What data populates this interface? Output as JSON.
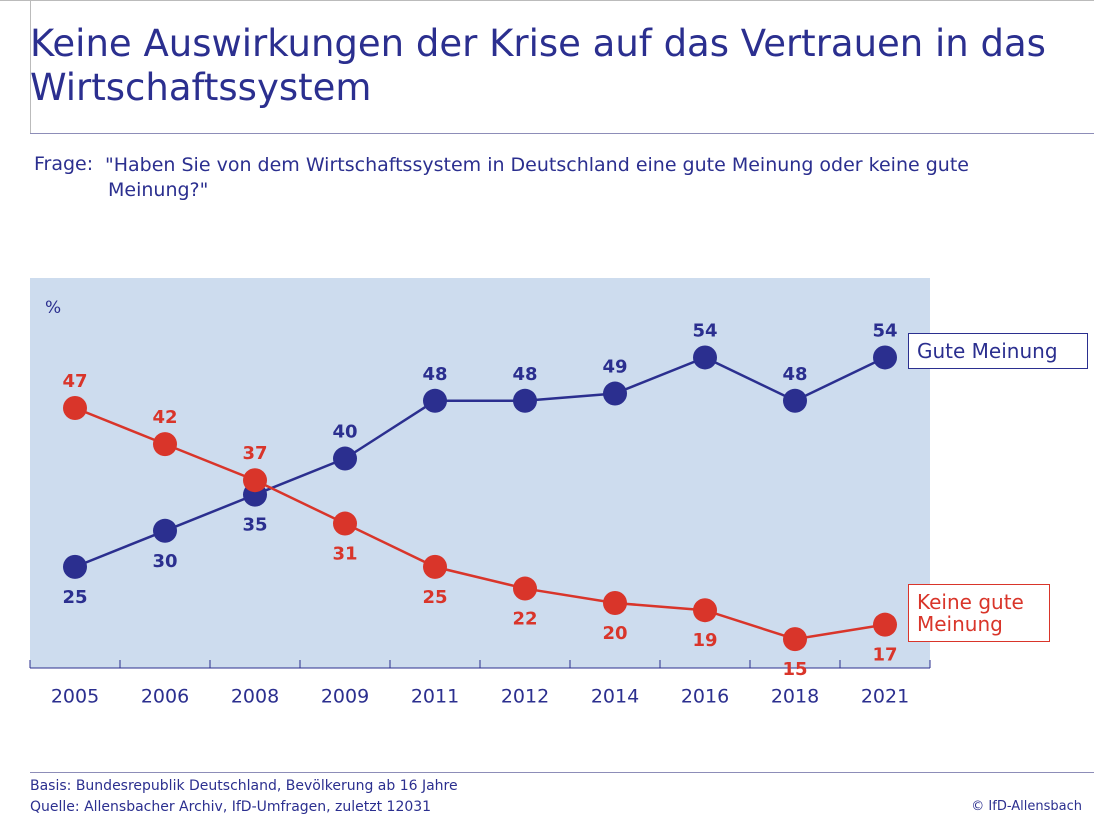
{
  "chart_data": {
    "type": "line",
    "title": "Keine Auswirkungen der Krise auf das Vertrauen in das Wirtschaftssystem",
    "question_label": "Frage:",
    "question": "\"Haben Sie von dem Wirtschaftssystem in Deutschland eine gute Meinung oder keine gute Meinung?\"",
    "y_label": "%",
    "categories": [
      "2005",
      "2006",
      "2008",
      "2009",
      "2011",
      "2012",
      "2014",
      "2016",
      "2018",
      "2021"
    ],
    "series": [
      {
        "name": "Gute Meinung",
        "color": "#2b2f8f",
        "values": [
          25,
          30,
          35,
          40,
          48,
          48,
          49,
          54,
          48,
          54
        ]
      },
      {
        "name": "Keine gute Meinung",
        "color": "#d9352a",
        "values": [
          47,
          42,
          37,
          31,
          25,
          22,
          20,
          19,
          15,
          17
        ]
      }
    ],
    "ylim": [
      11,
      65
    ],
    "basis": "Basis: Bundesrepublik Deutschland, Bevölkerung ab 16 Jahre",
    "source": "Quelle: Allensbacher Archiv, IfD-Umfragen, zuletzt 12031",
    "copyright": "© IfD-Allensbach"
  }
}
